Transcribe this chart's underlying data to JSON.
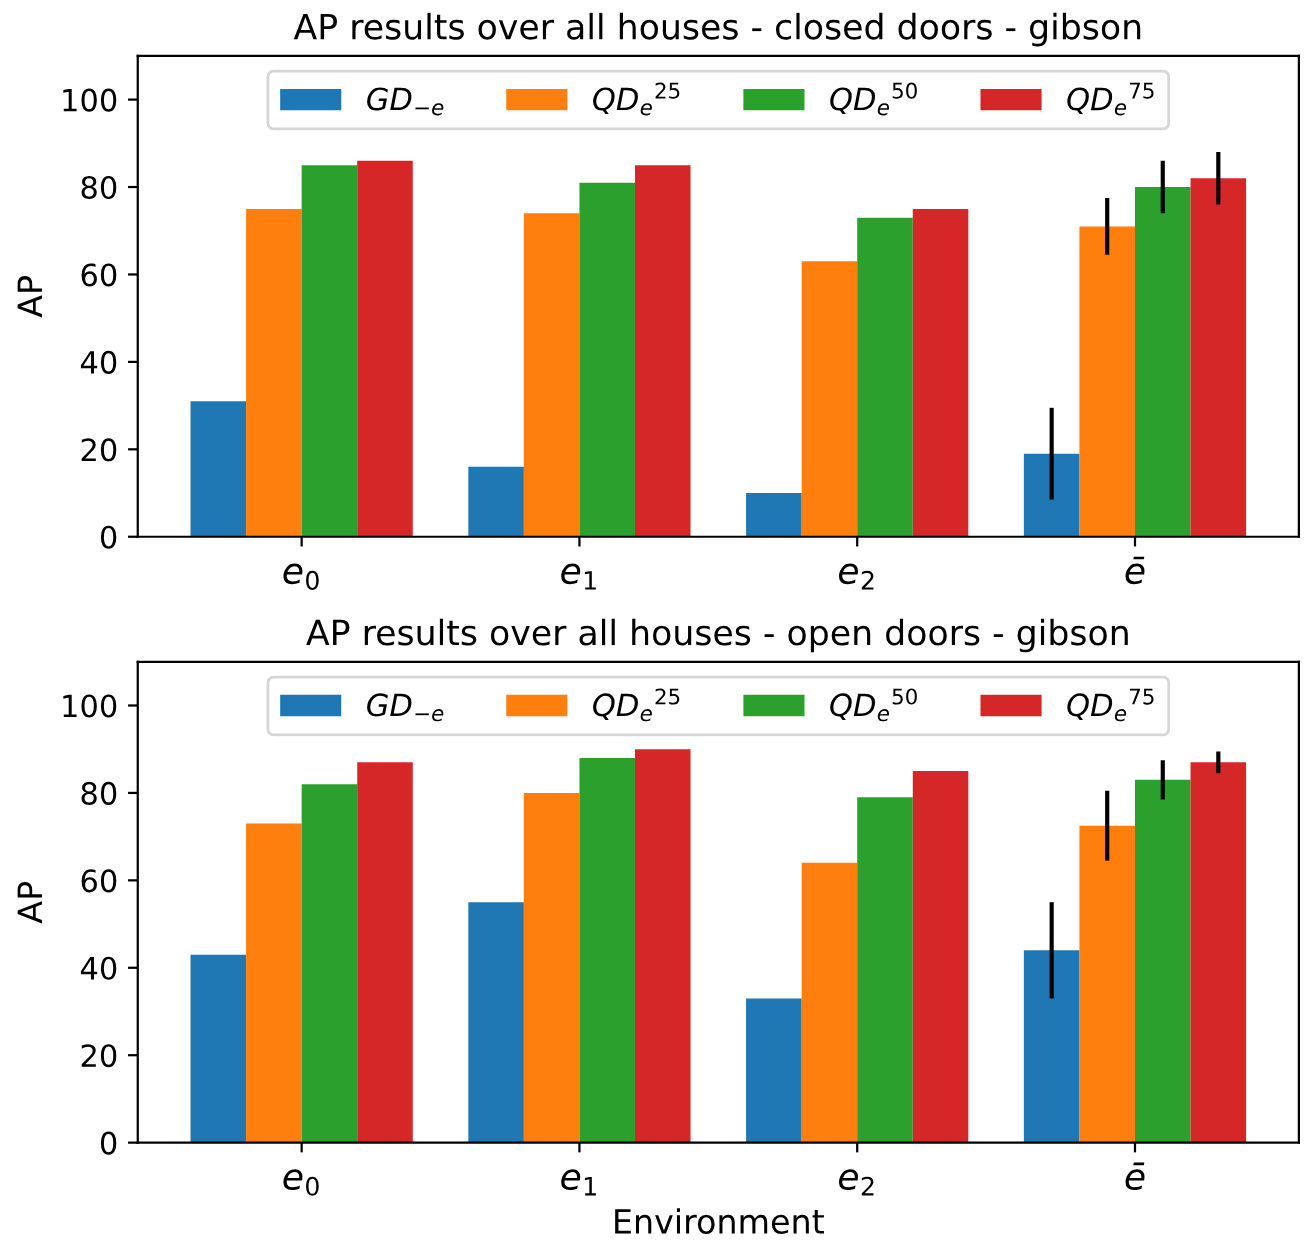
{
  "chart_data": [
    {
      "type": "bar",
      "title": "AP results over all houses - closed doors - gibson",
      "ylabel": "AP",
      "categories": [
        "e$_{0}$",
        "e$_{1}$",
        "e$_{2}$",
        "ē"
      ],
      "ylim": [
        0,
        110
      ],
      "yticks": [
        0,
        20,
        40,
        60,
        80,
        100
      ],
      "grid": false,
      "legend": "top",
      "series": [
        {
          "name": "GD$_{−e}$",
          "color": "#1f77b4",
          "values": [
            31,
            16,
            10,
            19
          ],
          "errors": [
            null,
            null,
            null,
            10.5
          ]
        },
        {
          "name": "QD$_{e}$$^{25}$",
          "color": "#ff7f0e",
          "values": [
            75,
            74,
            63,
            71
          ],
          "errors": [
            null,
            null,
            null,
            6.5
          ]
        },
        {
          "name": "QD$_{e}$$^{50}$",
          "color": "#2ca02c",
          "values": [
            85,
            81,
            73,
            80
          ],
          "errors": [
            null,
            null,
            null,
            6
          ]
        },
        {
          "name": "QD$_{e}$$^{75}$",
          "color": "#d62728",
          "values": [
            86,
            85,
            75,
            82
          ],
          "errors": [
            null,
            null,
            null,
            6
          ]
        }
      ]
    },
    {
      "type": "bar",
      "title": "AP results over all houses - open doors - gibson",
      "xlabel": "Environment",
      "ylabel": "AP",
      "categories": [
        "e$_{0}$",
        "e$_{1}$",
        "e$_{2}$",
        "ē"
      ],
      "ylim": [
        0,
        110
      ],
      "yticks": [
        0,
        20,
        40,
        60,
        80,
        100
      ],
      "grid": false,
      "legend": "top",
      "series": [
        {
          "name": "GD$_{−e}$",
          "color": "#1f77b4",
          "values": [
            43,
            55,
            33,
            44
          ],
          "errors": [
            null,
            null,
            null,
            11
          ]
        },
        {
          "name": "QD$_{e}$$^{25}$",
          "color": "#ff7f0e",
          "values": [
            73,
            80,
            64,
            72.5
          ],
          "errors": [
            null,
            null,
            null,
            8
          ]
        },
        {
          "name": "QD$_{e}$$^{50}$",
          "color": "#2ca02c",
          "values": [
            82,
            88,
            79,
            83
          ],
          "errors": [
            null,
            null,
            null,
            4.5
          ]
        },
        {
          "name": "QD$_{e}$$^{75}$",
          "color": "#d62728",
          "values": [
            87,
            90,
            85,
            87
          ],
          "errors": [
            null,
            null,
            null,
            2.5
          ]
        }
      ]
    }
  ]
}
